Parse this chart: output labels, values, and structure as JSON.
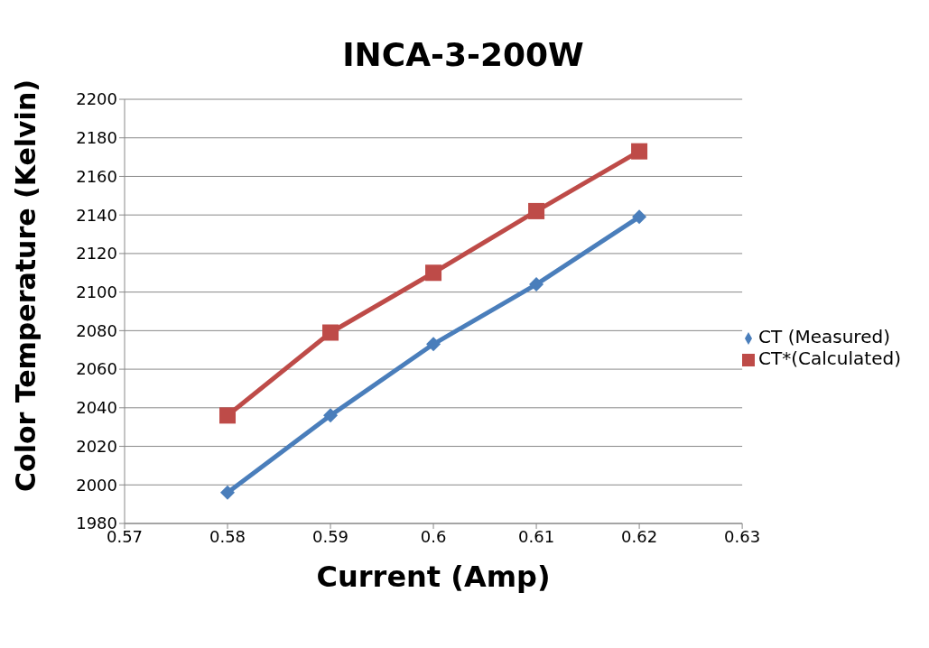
{
  "chart_data": {
    "type": "line",
    "title": "INCA-3-200W",
    "xlabel": "Current (Amp)",
    "ylabel": "Color Temperature (Kelvin)",
    "x": [
      0.58,
      0.59,
      0.6,
      0.61,
      0.62
    ],
    "series": [
      {
        "name": "CT (Measured)",
        "color": "#4a7ebb",
        "marker": "diamond",
        "values": [
          1996,
          2036,
          2073,
          2104,
          2139
        ]
      },
      {
        "name": "CT*(Calculated)",
        "color": "#be4b48",
        "marker": "square",
        "values": [
          2036,
          2079,
          2110,
          2142,
          2173
        ]
      }
    ],
    "xlim": [
      0.57,
      0.63
    ],
    "xticks": [
      0.57,
      0.58,
      0.59,
      0.6,
      0.61,
      0.62,
      0.63
    ],
    "ylim": [
      1980,
      2200
    ],
    "yticks": [
      1980,
      2000,
      2020,
      2040,
      2060,
      2080,
      2100,
      2120,
      2140,
      2160,
      2180,
      2200
    ],
    "grid": "y",
    "legend": "right",
    "line_style": "solid"
  }
}
